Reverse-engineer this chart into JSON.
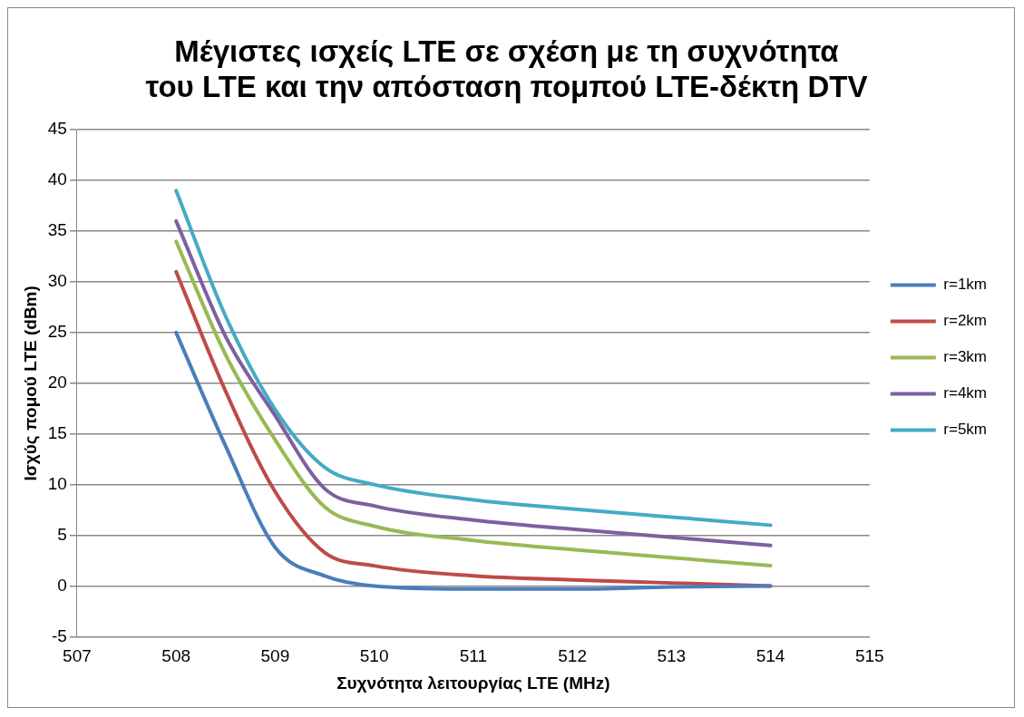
{
  "chart_data": {
    "type": "line",
    "title": [
      "Μέγιστες ισχείς LTE σε σχέση με τη συχνότητα",
      "του LTE και την απόσταση πομπού LTE-δέκτη DTV"
    ],
    "xlabel": "Συχνότητα λειτουργίας LTE (MHz)",
    "ylabel": "Ισχύς πομού LTE (dBm)",
    "x": [
      508,
      508.5,
      509,
      509.5,
      510,
      511,
      512,
      513,
      514
    ],
    "series": [
      {
        "name": "r=1km",
        "color": "#4a7ebb",
        "values": [
          25,
          13.8,
          3.8,
          1.0,
          0,
          -0.3,
          -0.3,
          -0.1,
          0
        ]
      },
      {
        "name": "r=2km",
        "color": "#be4b48",
        "values": [
          31,
          19.2,
          9.3,
          3.3,
          2,
          1,
          0.6,
          0.3,
          0
        ]
      },
      {
        "name": "r=3km",
        "color": "#98b954",
        "values": [
          34,
          22.8,
          14.4,
          7.8,
          5.9,
          4.5,
          3.6,
          2.8,
          2
        ]
      },
      {
        "name": "r=4km",
        "color": "#7d60a0",
        "values": [
          36,
          24.6,
          16.8,
          9.6,
          7.9,
          6.5,
          5.6,
          4.8,
          4
        ]
      },
      {
        "name": "r=5km",
        "color": "#46aac5",
        "values": [
          39,
          26.6,
          17.4,
          11.7,
          10,
          8.5,
          7.6,
          6.8,
          6
        ]
      }
    ],
    "xlim": [
      507,
      515
    ],
    "xticks": [
      507,
      508,
      509,
      510,
      511,
      512,
      513,
      514,
      515
    ],
    "ylim": [
      -5,
      45
    ],
    "yticks": [
      -5,
      0,
      5,
      10,
      15,
      20,
      25,
      30,
      35,
      40,
      45
    ],
    "grid": "y",
    "legend": "right",
    "marker": "none",
    "line_style": "solid"
  }
}
